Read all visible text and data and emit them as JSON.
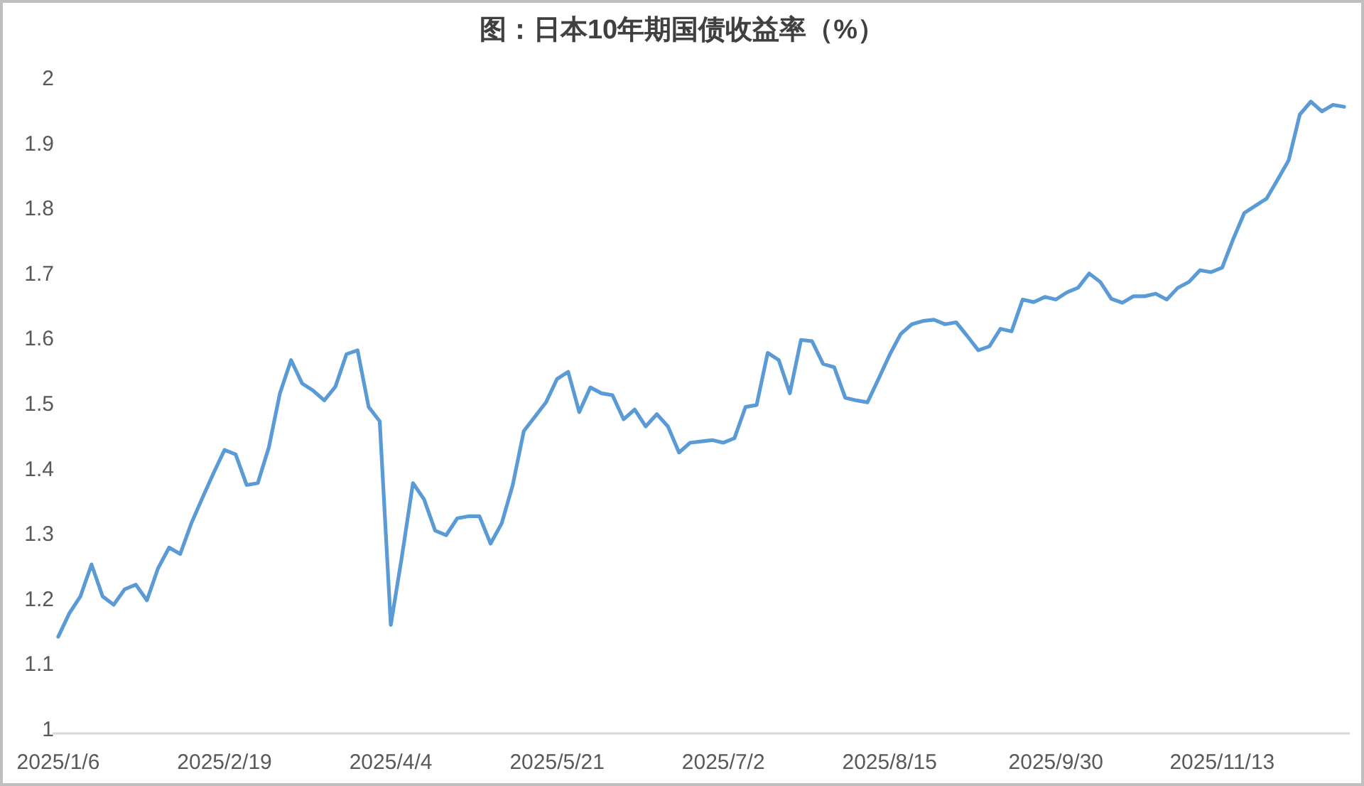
{
  "chart_data": {
    "type": "line",
    "title": "图：日本10年期国债收益率（%）",
    "categories": [
      "2025/1/6",
      null,
      null,
      null,
      null,
      null,
      null,
      null,
      null,
      null,
      null,
      null,
      null,
      null,
      null,
      "2025/2/19",
      null,
      null,
      null,
      null,
      null,
      null,
      null,
      null,
      null,
      null,
      null,
      null,
      null,
      null,
      "2025/4/4",
      null,
      null,
      null,
      null,
      null,
      null,
      null,
      null,
      null,
      null,
      null,
      null,
      null,
      null,
      "2025/5/21",
      null,
      null,
      null,
      null,
      null,
      null,
      null,
      null,
      null,
      null,
      null,
      null,
      null,
      null,
      "2025/7/2",
      null,
      null,
      null,
      null,
      null,
      null,
      null,
      null,
      null,
      null,
      null,
      null,
      null,
      null,
      "2025/8/15",
      null,
      null,
      null,
      null,
      null,
      null,
      null,
      null,
      null,
      null,
      null,
      null,
      null,
      null,
      "2025/9/30",
      null,
      null,
      null,
      null,
      null,
      null,
      null,
      null,
      null,
      null,
      null,
      null,
      null,
      null,
      "2025/11/13",
      null,
      null,
      null,
      null,
      null,
      null,
      null,
      null,
      null,
      null,
      null
    ],
    "series": [
      {
        "color": "#5b9bd5",
        "values": [
          1.142,
          1.178,
          1.204,
          1.253,
          1.204,
          1.191,
          1.215,
          1.222,
          1.198,
          1.247,
          1.279,
          1.269,
          1.316,
          1.355,
          1.393,
          1.429,
          1.422,
          1.375,
          1.378,
          1.433,
          1.516,
          1.567,
          1.531,
          1.52,
          1.505,
          1.526,
          1.576,
          1.582,
          1.495,
          1.473,
          1.16,
          1.265,
          1.378,
          1.353,
          1.305,
          1.298,
          1.324,
          1.327,
          1.327,
          1.285,
          1.316,
          1.375,
          1.458,
          1.48,
          1.502,
          1.538,
          1.549,
          1.487,
          1.525,
          1.516,
          1.513,
          1.476,
          1.491,
          1.465,
          1.484,
          1.465,
          1.425,
          1.44,
          1.442,
          1.444,
          1.44,
          1.447,
          1.495,
          1.498,
          1.578,
          1.567,
          1.516,
          1.598,
          1.596,
          1.561,
          1.556,
          1.509,
          1.505,
          1.502,
          1.538,
          1.575,
          1.607,
          1.622,
          1.627,
          1.629,
          1.622,
          1.625,
          1.604,
          1.582,
          1.588,
          1.615,
          1.611,
          1.66,
          1.656,
          1.664,
          1.66,
          1.671,
          1.678,
          1.7,
          1.687,
          1.661,
          1.655,
          1.665,
          1.665,
          1.669,
          1.66,
          1.678,
          1.687,
          1.705,
          1.702,
          1.709,
          1.753,
          1.793,
          1.804,
          1.815,
          1.844,
          1.874,
          1.944,
          1.964,
          1.949,
          1.959,
          1.956
        ]
      }
    ],
    "ylim": [
      1,
      2
    ],
    "yticks": [
      1,
      1.1,
      1.2,
      1.3,
      1.4,
      1.5,
      1.6,
      1.7,
      1.8,
      1.9,
      2
    ]
  }
}
